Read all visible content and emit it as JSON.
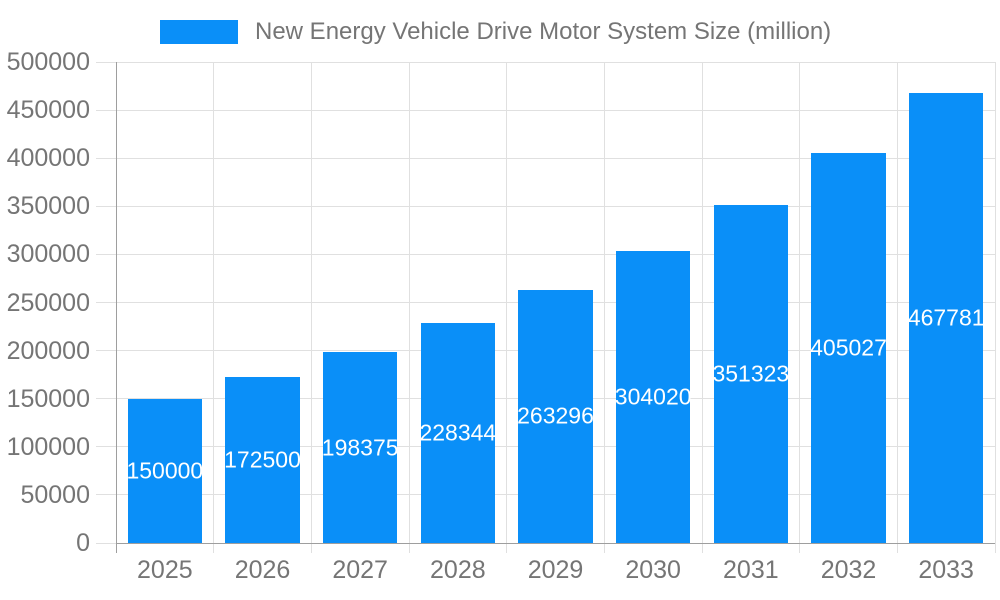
{
  "chart_data": {
    "type": "bar",
    "series_name": "New Energy Vehicle Drive Motor System Size (million)",
    "categories": [
      "2025",
      "2026",
      "2027",
      "2028",
      "2029",
      "2030",
      "2031",
      "2032",
      "2033"
    ],
    "values": [
      150000,
      172500,
      198375,
      228344,
      263296,
      304020,
      351323,
      405027,
      467781
    ],
    "ylim": [
      0,
      500000
    ],
    "ytick_step": 50000,
    "ytick_labels": [
      "0",
      "50000",
      "100000",
      "150000",
      "200000",
      "250000",
      "300000",
      "350000",
      "400000",
      "450000",
      "500000"
    ],
    "grid": true,
    "legend_position": "top",
    "bar_labels_position": "inside-middle",
    "colors": {
      "bar": "#0a8ff8",
      "bar_label_text": "#ffffff",
      "axis_label_text": "#757575",
      "legend_text": "#757575",
      "gridline": "#e0e0e0",
      "axis_line": "#9e9e9e",
      "background": "#ffffff"
    }
  }
}
